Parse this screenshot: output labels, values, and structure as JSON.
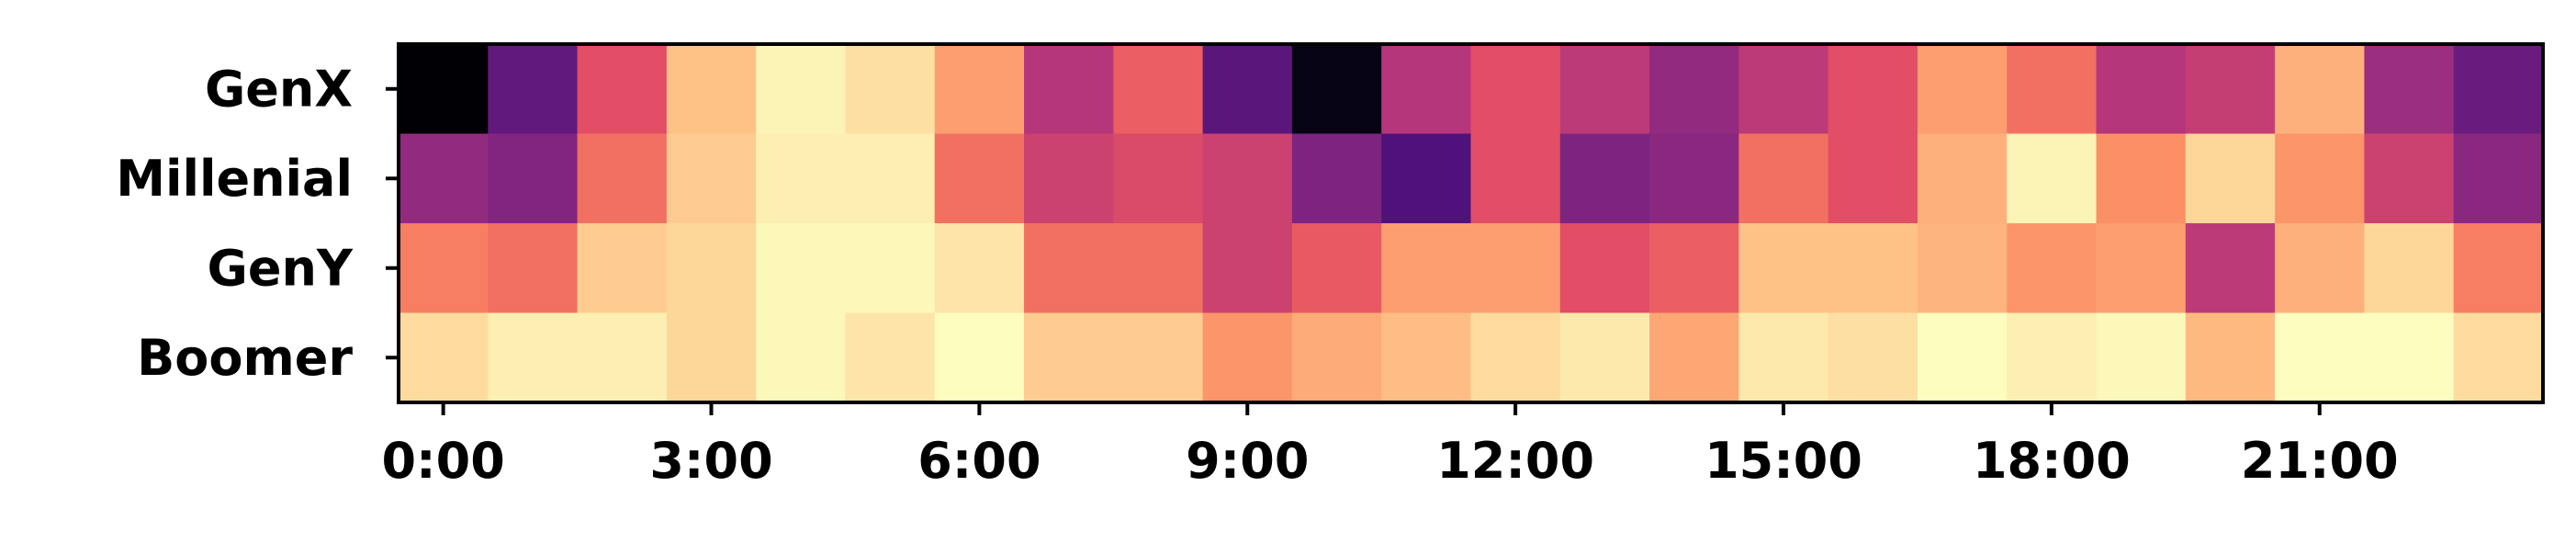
{
  "chart_data": {
    "type": "heatmap",
    "title": "",
    "xlabel": "",
    "ylabel": "",
    "colormap": "magma",
    "value_range": [
      0,
      1
    ],
    "rows": [
      "GenX",
      "Millenial",
      "GenY",
      "Boomer"
    ],
    "x_tick_labels": [
      "0:00",
      "3:00",
      "6:00",
      "9:00",
      "12:00",
      "15:00",
      "18:00",
      "21:00"
    ],
    "x_tick_hours": [
      0,
      3,
      6,
      9,
      12,
      15,
      18,
      21
    ],
    "hours": [
      0,
      1,
      2,
      3,
      4,
      5,
      6,
      7,
      8,
      9,
      10,
      11,
      12,
      13,
      14,
      15,
      16,
      17,
      18,
      19,
      20,
      21,
      22,
      23
    ],
    "values": [
      [
        0.0,
        0.3,
        0.62,
        0.88,
        0.98,
        0.94,
        0.8,
        0.5,
        0.66,
        0.28,
        0.03,
        0.5,
        0.62,
        0.52,
        0.42,
        0.52,
        0.62,
        0.8,
        0.7,
        0.5,
        0.54,
        0.84,
        0.44,
        0.32
      ],
      [
        0.42,
        0.38,
        0.7,
        0.9,
        0.97,
        0.97,
        0.7,
        0.56,
        0.6,
        0.56,
        0.37,
        0.25,
        0.62,
        0.37,
        0.4,
        0.7,
        0.62,
        0.84,
        0.98,
        0.77,
        0.92,
        0.78,
        0.56,
        0.4
      ],
      [
        0.73,
        0.7,
        0.9,
        0.92,
        0.99,
        0.99,
        0.95,
        0.7,
        0.7,
        0.56,
        0.65,
        0.8,
        0.8,
        0.62,
        0.66,
        0.88,
        0.88,
        0.85,
        0.78,
        0.8,
        0.52,
        0.84,
        0.92,
        0.73
      ],
      [
        0.93,
        0.97,
        0.97,
        0.92,
        0.99,
        0.95,
        1.0,
        0.9,
        0.9,
        0.78,
        0.83,
        0.87,
        0.93,
        0.96,
        0.82,
        0.96,
        0.94,
        1.0,
        0.97,
        0.99,
        0.86,
        1.0,
        1.0,
        0.93
      ]
    ]
  }
}
